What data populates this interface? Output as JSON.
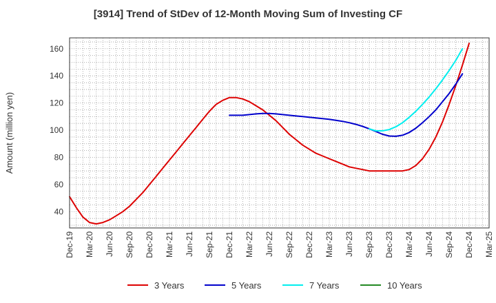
{
  "chart_data": {
    "type": "line",
    "title": "[3914]  Trend of StDev of 12-Month Moving Sum of Investing CF",
    "ylabel": "Amount (million yen)",
    "xlabel": "",
    "ylim": [
      28,
      168
    ],
    "yticks": [
      40,
      60,
      80,
      100,
      120,
      140,
      160
    ],
    "xticks": [
      "Dec-19",
      "Mar-20",
      "Jun-20",
      "Sep-20",
      "Dec-20",
      "Mar-21",
      "Jun-21",
      "Sep-21",
      "Dec-21",
      "Mar-22",
      "Jun-22",
      "Sep-22",
      "Dec-22",
      "Mar-23",
      "Jun-23",
      "Sep-23",
      "Dec-23",
      "Mar-24",
      "Jun-24",
      "Sep-24",
      "Dec-24",
      "Mar-25"
    ],
    "grid": true,
    "legend_position": "bottom",
    "series": [
      {
        "name": "3 Years",
        "color": "#dd0000",
        "values": [
          [
            0,
            51
          ],
          [
            1,
            43
          ],
          [
            2,
            36
          ],
          [
            3,
            32
          ],
          [
            4,
            31
          ],
          [
            5,
            32
          ],
          [
            6,
            34
          ],
          [
            7,
            37
          ],
          [
            8,
            40
          ],
          [
            9,
            44
          ],
          [
            10,
            49
          ],
          [
            11,
            54
          ],
          [
            12,
            60
          ],
          [
            13,
            66
          ],
          [
            14,
            72
          ],
          [
            15,
            78
          ],
          [
            16,
            84
          ],
          [
            17,
            90
          ],
          [
            18,
            96
          ],
          [
            19,
            102
          ],
          [
            20,
            108
          ],
          [
            21,
            114
          ],
          [
            22,
            119
          ],
          [
            23,
            122
          ],
          [
            24,
            124
          ],
          [
            25,
            124
          ],
          [
            26,
            123
          ],
          [
            27,
            121
          ],
          [
            28,
            118
          ],
          [
            29,
            115
          ],
          [
            30,
            111
          ],
          [
            31,
            107
          ],
          [
            32,
            102
          ],
          [
            33,
            97
          ],
          [
            34,
            93
          ],
          [
            35,
            89
          ],
          [
            36,
            86
          ],
          [
            37,
            83
          ],
          [
            38,
            81
          ],
          [
            39,
            79
          ],
          [
            40,
            77
          ],
          [
            41,
            75
          ],
          [
            42,
            73
          ],
          [
            43,
            72
          ],
          [
            44,
            71
          ],
          [
            45,
            70
          ],
          [
            46,
            70
          ],
          [
            47,
            70
          ],
          [
            48,
            70
          ],
          [
            49,
            70
          ],
          [
            50,
            70
          ],
          [
            51,
            71
          ],
          [
            52,
            74
          ],
          [
            53,
            79
          ],
          [
            54,
            86
          ],
          [
            55,
            95
          ],
          [
            56,
            106
          ],
          [
            57,
            119
          ],
          [
            58,
            133
          ],
          [
            59,
            148
          ],
          [
            60,
            164
          ]
        ]
      },
      {
        "name": "5 Years",
        "color": "#0000cc",
        "values": [
          [
            24,
            111
          ],
          [
            25,
            111
          ],
          [
            26,
            111
          ],
          [
            27,
            111.5
          ],
          [
            28,
            112
          ],
          [
            29,
            112.3
          ],
          [
            30,
            112.3
          ],
          [
            31,
            112
          ],
          [
            32,
            111.5
          ],
          [
            33,
            111
          ],
          [
            34,
            110.5
          ],
          [
            35,
            110
          ],
          [
            36,
            109.5
          ],
          [
            37,
            109
          ],
          [
            38,
            108.5
          ],
          [
            39,
            108
          ],
          [
            40,
            107.3
          ],
          [
            41,
            106.5
          ],
          [
            42,
            105.5
          ],
          [
            43,
            104.3
          ],
          [
            44,
            102.8
          ],
          [
            45,
            101
          ],
          [
            46,
            99
          ],
          [
            47,
            97
          ],
          [
            48,
            95.7
          ],
          [
            49,
            95.5
          ],
          [
            50,
            96.3
          ],
          [
            51,
            98.3
          ],
          [
            52,
            101.5
          ],
          [
            53,
            105.5
          ],
          [
            54,
            110
          ],
          [
            55,
            115
          ],
          [
            56,
            121
          ],
          [
            57,
            127
          ],
          [
            58,
            134
          ],
          [
            59,
            141.5
          ]
        ]
      },
      {
        "name": "7 Years",
        "color": "#00eeee",
        "values": [
          [
            45,
            101
          ],
          [
            46,
            99.5
          ],
          [
            47,
            99.5
          ],
          [
            48,
            100.5
          ],
          [
            49,
            102.5
          ],
          [
            50,
            105.5
          ],
          [
            51,
            109.5
          ],
          [
            52,
            114
          ],
          [
            53,
            119
          ],
          [
            54,
            124.5
          ],
          [
            55,
            130.5
          ],
          [
            56,
            137
          ],
          [
            57,
            144
          ],
          [
            58,
            151.5
          ],
          [
            59,
            160
          ]
        ]
      },
      {
        "name": "10 Years",
        "color": "#228822",
        "values": []
      }
    ]
  }
}
